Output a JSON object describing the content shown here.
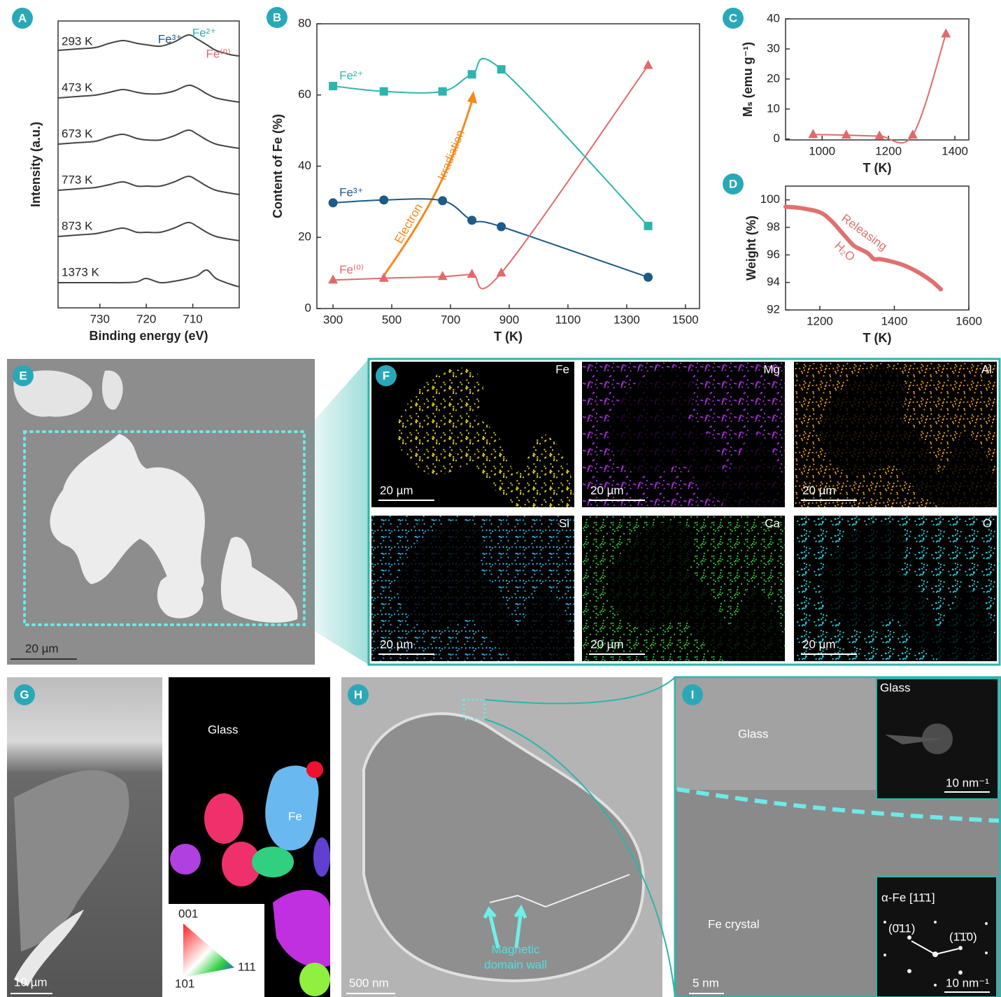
{
  "panel_labels": [
    "A",
    "B",
    "C",
    "D",
    "E",
    "F",
    "G",
    "H",
    "I"
  ],
  "chart_data": [
    {
      "type": "line",
      "xlabel": "Binding energy (eV)",
      "ylabel": "Intensity (a.u.)",
      "xlim": [
        739,
        700
      ],
      "xticks": [
        730,
        720,
        710
      ],
      "annotations": [
        "Fe³⁺",
        "Fe²⁺",
        "Fe⁽⁰⁾"
      ],
      "x": [
        739,
        735,
        731,
        728,
        725,
        722,
        720,
        717,
        714,
        711,
        709,
        707,
        705,
        702,
        700
      ],
      "series": [
        {
          "name": "293 K",
          "color": "#444444",
          "values": [
            2,
            2.5,
            3,
            4.5,
            5.5,
            4.5,
            4,
            3.5,
            5,
            7.5,
            6,
            4,
            2,
            0.5,
            0
          ]
        },
        {
          "name": "473 K",
          "color": "#444444",
          "values": [
            1.5,
            2,
            2.5,
            3.5,
            4.5,
            3.5,
            3,
            3,
            4,
            6,
            5,
            3,
            1.5,
            0.5,
            0
          ]
        },
        {
          "name": "673 K",
          "color": "#444444",
          "values": [
            1.5,
            2,
            2.5,
            4,
            5,
            3.5,
            3,
            3,
            4.5,
            6.5,
            5,
            3,
            1.5,
            0.5,
            0
          ]
        },
        {
          "name": "773 K",
          "color": "#444444",
          "values": [
            1.5,
            2,
            2.5,
            3.5,
            4.5,
            3,
            3,
            3,
            4.5,
            6.5,
            5,
            3,
            1.5,
            0.5,
            0
          ]
        },
        {
          "name": "873 K",
          "color": "#444444",
          "values": [
            1.5,
            2,
            2.5,
            3.5,
            4.5,
            3,
            3,
            3,
            4.5,
            6.5,
            5,
            3,
            1.5,
            0.5,
            0
          ]
        },
        {
          "name": "1373 K",
          "color": "#444444",
          "values": [
            1.5,
            1.5,
            1.5,
            1.5,
            1.5,
            1.8,
            3,
            1.5,
            2,
            3,
            4,
            6,
            3,
            1,
            0
          ]
        }
      ]
    },
    {
      "type": "line",
      "xlabel": "T (K)",
      "ylabel": "Content of Fe (%)",
      "xlim": [
        245,
        1548
      ],
      "xticks": [
        300,
        500,
        700,
        900,
        1100,
        1300,
        1500
      ],
      "ylim": [
        0,
        80
      ],
      "yticks": [
        0,
        20,
        40,
        60,
        80
      ],
      "annotations": [
        "Electron",
        "Irradiation"
      ],
      "x": [
        300,
        473,
        673,
        773,
        873,
        1373
      ],
      "series": [
        {
          "name": "Fe²⁺",
          "color": "#2bb5ad",
          "marker": "square",
          "values": [
            62.5,
            61,
            61,
            65.8,
            67.2,
            23.2
          ]
        },
        {
          "name": "Fe³⁺",
          "color": "#1d5a86",
          "marker": "circle",
          "values": [
            29.7,
            30.5,
            30.3,
            24.8,
            23,
            8.8
          ]
        },
        {
          "name": "Fe⁽⁰⁾",
          "color": "#e06a6a",
          "marker": "triangle",
          "values": [
            8,
            8.5,
            9,
            9.6,
            10,
            68.3
          ]
        }
      ]
    },
    {
      "type": "line",
      "xlabel": "T (K)",
      "ylabel": "Mₛ (emu g⁻¹)",
      "xlim": [
        890,
        1442
      ],
      "xticks": [
        1000,
        1200,
        1400
      ],
      "ylim": [
        -0.3,
        40
      ],
      "yticks": [
        0,
        10,
        20,
        30,
        40
      ],
      "x": [
        973,
        1073,
        1173,
        1273,
        1373
      ],
      "values": [
        1.5,
        1.3,
        1,
        1.3,
        35
      ],
      "color": "#e06a6a",
      "marker": "triangle"
    },
    {
      "type": "line",
      "xlabel": "T (K)",
      "ylabel": "Weight (%)",
      "xlim": [
        1108,
        1600
      ],
      "xticks": [
        1200,
        1400,
        1600
      ],
      "ylim": [
        92,
        101
      ],
      "yticks": [
        92,
        94,
        96,
        98,
        100
      ],
      "annotations": [
        "Releasing",
        "H₂O"
      ],
      "x": [
        1108,
        1150,
        1200,
        1230,
        1260,
        1290,
        1310,
        1330,
        1345,
        1360,
        1380,
        1420,
        1460,
        1500,
        1525
      ],
      "values": [
        99.5,
        99.4,
        99.1,
        98.5,
        97.6,
        96.7,
        96.4,
        96.1,
        95.7,
        95.7,
        95.6,
        95.3,
        94.8,
        94.1,
        93.5
      ],
      "color": "#e07070"
    }
  ],
  "panel_e": {
    "scale_bar": "20 µm"
  },
  "panel_f": {
    "maps": [
      {
        "element": "Fe",
        "scale_bar": "20 µm"
      },
      {
        "element": "Mg",
        "scale_bar": "20 µm"
      },
      {
        "element": "Al",
        "scale_bar": "20 µm"
      },
      {
        "element": "Si",
        "scale_bar": "20 µm"
      },
      {
        "element": "Ca",
        "scale_bar": "20 µm"
      },
      {
        "element": "O",
        "scale_bar": "20 µm"
      }
    ]
  },
  "panel_g": {
    "glass": "Glass",
    "fe": "Fe",
    "scale_bar": "10 µm",
    "legend": [
      "001",
      "101",
      "111"
    ]
  },
  "panel_h": {
    "annotation": [
      "Magnetic",
      "domain wall"
    ],
    "scale_bar": "500 nm"
  },
  "panel_i": {
    "glass": "Glass",
    "crystal": "Fe crystal",
    "scale_bar": "5 nm",
    "inset_top": {
      "label": "Glass",
      "scale_bar": "10 nm⁻¹"
    },
    "inset_bottom": {
      "label": "α-Fe [11̄1]",
      "planes": [
        "(0̄11)",
        "(1̄1̄0)"
      ],
      "scale_bar": "10 nm⁻¹"
    }
  }
}
